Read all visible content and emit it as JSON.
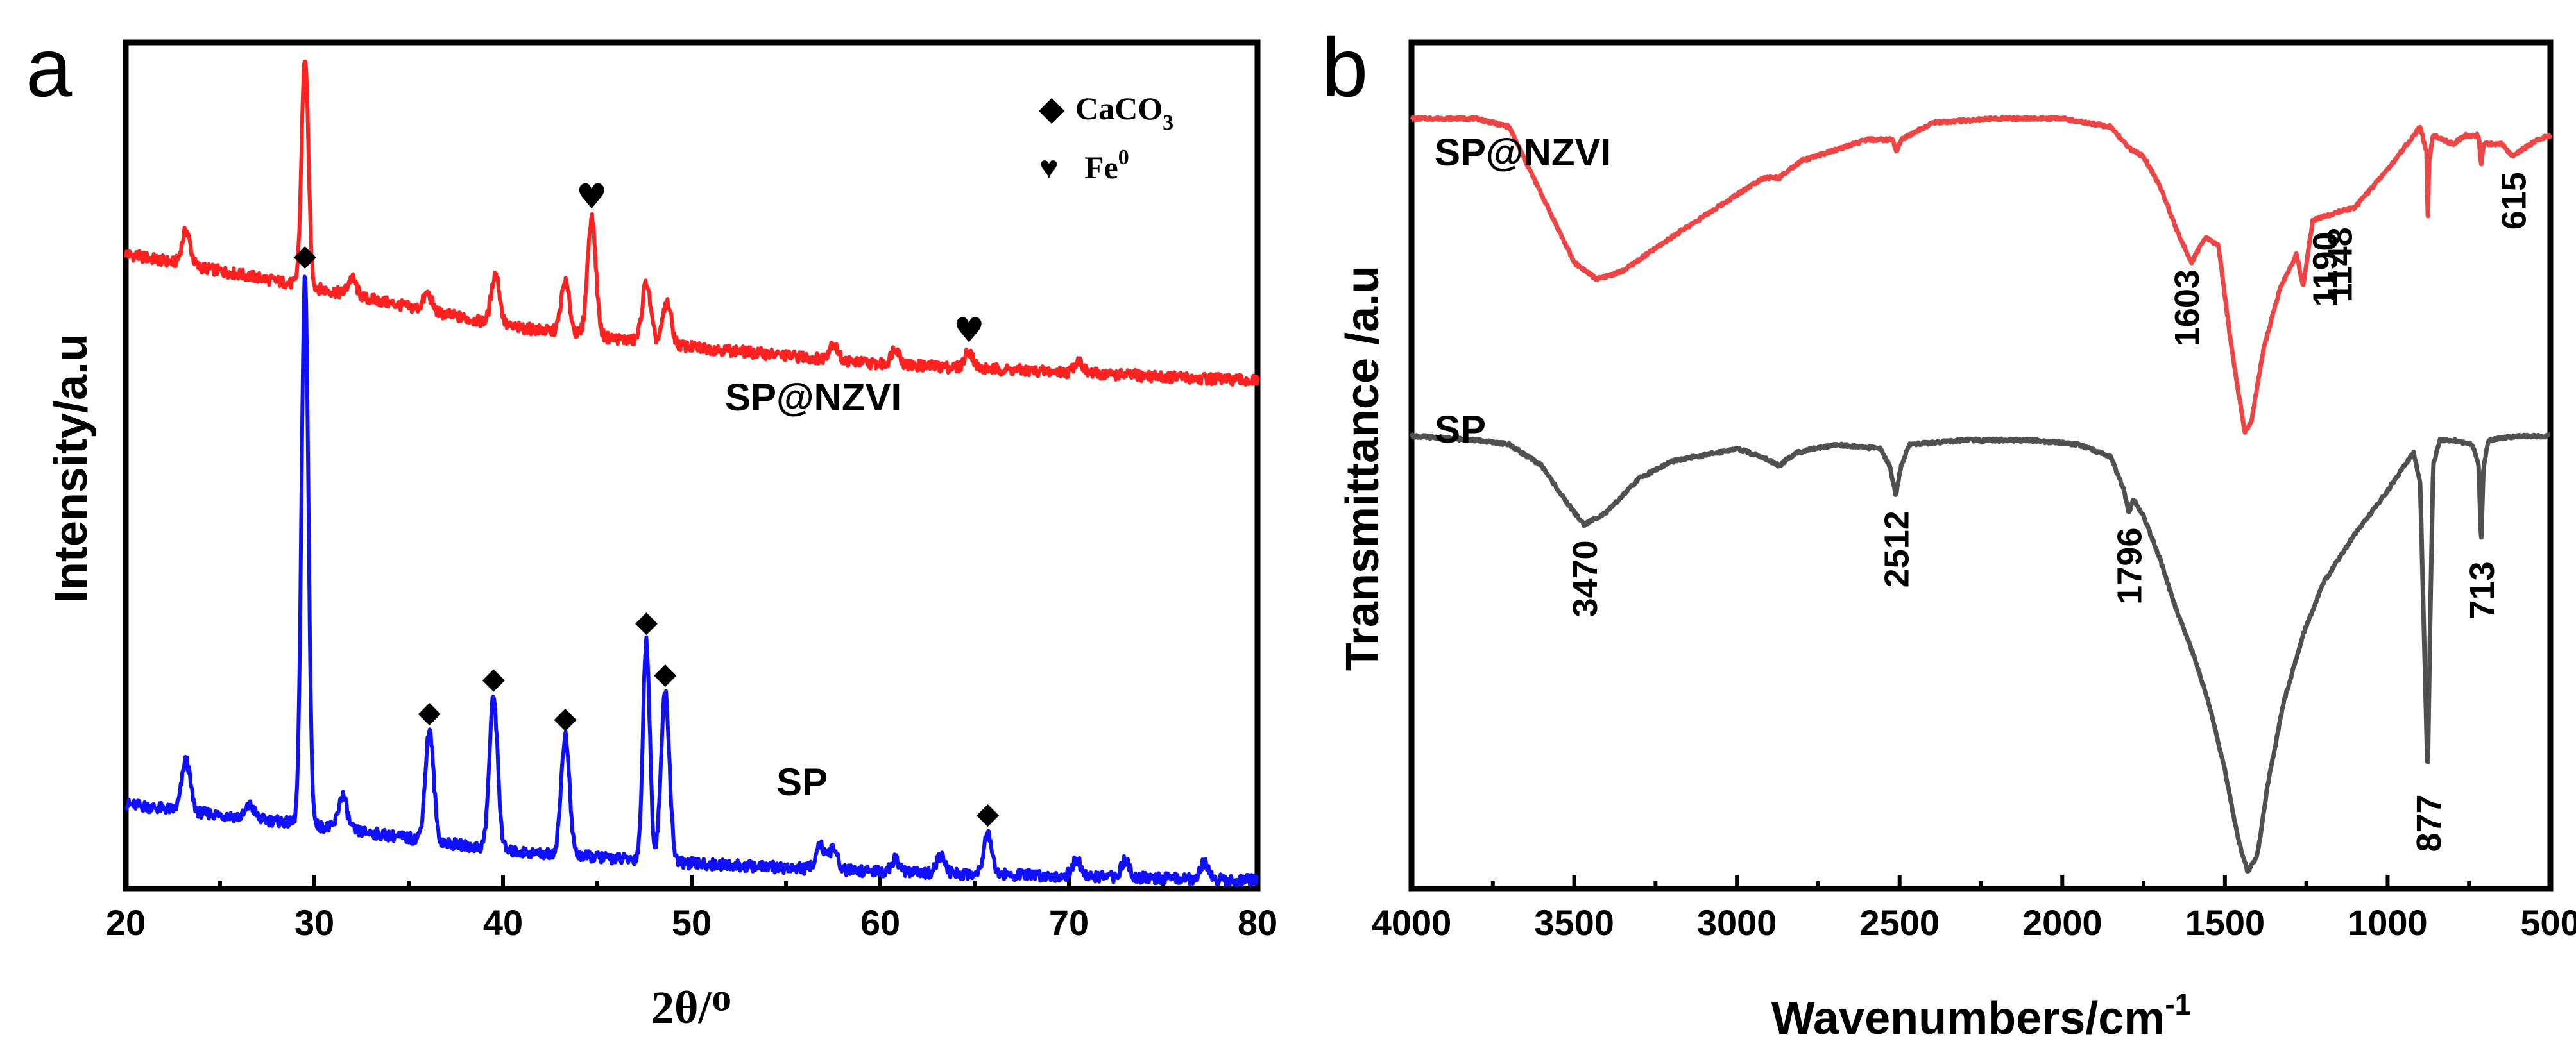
{
  "chart_data": [
    {
      "panel": "a",
      "type": "line",
      "title": "",
      "xlabel": "2θ/ᴼ",
      "ylabel": "Intensity/a.u",
      "xlim": [
        20,
        80
      ],
      "xticks": [
        20,
        30,
        40,
        50,
        60,
        70,
        80
      ],
      "ylim": [
        0,
        100
      ],
      "legend": {
        "position": "top-right",
        "entries": [
          {
            "marker": "◆",
            "label": "CaCO",
            "sub": "3"
          },
          {
            "marker": "♥",
            "label": "Fe",
            "sup": "0"
          }
        ]
      },
      "series": [
        {
          "name": "SP@NZVI",
          "color": "#ff2020",
          "baseline": [
            [
              20,
              75
            ],
            [
              30,
              71
            ],
            [
              40,
              66.5
            ],
            [
              50,
              64
            ],
            [
              60,
              62
            ],
            [
              70,
              61
            ],
            [
              80,
              60
            ]
          ],
          "peaks": [
            {
              "x": 23.2,
              "h": 4
            },
            {
              "x": 29.5,
              "h": 27
            },
            {
              "x": 32.0,
              "h": 2
            },
            {
              "x": 36.0,
              "h": 2
            },
            {
              "x": 39.6,
              "h": 6
            },
            {
              "x": 43.3,
              "h": 6
            },
            {
              "x": 44.7,
              "h": 14
            },
            {
              "x": 47.6,
              "h": 7
            },
            {
              "x": 48.7,
              "h": 5
            },
            {
              "x": 57.5,
              "h": 2
            },
            {
              "x": 60.8,
              "h": 2
            },
            {
              "x": 64.7,
              "h": 2
            },
            {
              "x": 70.5,
              "h": 1.5
            }
          ],
          "label": "SP@NZVI",
          "markers": [
            {
              "symbol": "♥",
              "x": 44.7
            },
            {
              "symbol": "♥",
              "x": 64.7
            }
          ]
        },
        {
          "name": "SP",
          "color": "#1010ff",
          "baseline": [
            [
              20,
              10
            ],
            [
              30,
              7.5
            ],
            [
              40,
              4.5
            ],
            [
              50,
              3
            ],
            [
              60,
              2
            ],
            [
              70,
              1.5
            ],
            [
              80,
              1
            ]
          ],
          "peaks": [
            {
              "x": 23.2,
              "h": 6
            },
            {
              "x": 26.6,
              "h": 1.5
            },
            {
              "x": 29.5,
              "h": 65
            },
            {
              "x": 31.5,
              "h": 4
            },
            {
              "x": 36.1,
              "h": 13
            },
            {
              "x": 39.5,
              "h": 18
            },
            {
              "x": 43.3,
              "h": 14
            },
            {
              "x": 47.6,
              "h": 26
            },
            {
              "x": 48.6,
              "h": 20
            },
            {
              "x": 56.8,
              "h": 3
            },
            {
              "x": 57.5,
              "h": 2.5
            },
            {
              "x": 60.8,
              "h": 1.5
            },
            {
              "x": 63.2,
              "h": 2
            },
            {
              "x": 65.7,
              "h": 5
            },
            {
              "x": 70.4,
              "h": 2
            },
            {
              "x": 73.0,
              "h": 2
            },
            {
              "x": 77.2,
              "h": 2
            }
          ],
          "label": "SP",
          "markers": [
            {
              "symbol": "◆",
              "x": 29.5
            },
            {
              "symbol": "◆",
              "x": 36.1
            },
            {
              "symbol": "◆",
              "x": 39.5
            },
            {
              "symbol": "◆",
              "x": 43.3
            },
            {
              "symbol": "◆",
              "x": 47.6
            },
            {
              "symbol": "◆",
              "x": 48.6
            },
            {
              "symbol": "◆",
              "x": 65.7
            }
          ]
        }
      ]
    },
    {
      "panel": "b",
      "type": "line",
      "title": "",
      "xlabel": "Wavenumbers/cm",
      "xlabel_sup": "-1",
      "ylabel": "Transmittance /a.u",
      "xlim": [
        4000,
        500
      ],
      "xticks": [
        4000,
        3500,
        3000,
        2500,
        2000,
        1500,
        1000,
        500
      ],
      "ylim": [
        0,
        100
      ],
      "series": [
        {
          "name": "SP@NZVI",
          "color": "#ee4444",
          "points": [
            [
              4000,
              91
            ],
            [
              3800,
              91
            ],
            [
              3700,
              90
            ],
            [
              3600,
              82
            ],
            [
              3500,
              74
            ],
            [
              3430,
              72
            ],
            [
              3350,
              73
            ],
            [
              3200,
              77
            ],
            [
              3000,
              82
            ],
            [
              2920,
              84
            ],
            [
              2870,
              84
            ],
            [
              2800,
              86
            ],
            [
              2600,
              88.5
            ],
            [
              2520,
              88.5
            ],
            [
              2510,
              87
            ],
            [
              2495,
              88.5
            ],
            [
              2400,
              90.5
            ],
            [
              2200,
              91
            ],
            [
              2000,
              91
            ],
            [
              1850,
              90
            ],
            [
              1796,
              87.5
            ],
            [
              1750,
              86.5
            ],
            [
              1700,
              83
            ],
            [
              1650,
              78
            ],
            [
              1603,
              74
            ],
            [
              1560,
              77
            ],
            [
              1520,
              76
            ],
            [
              1480,
              64
            ],
            [
              1440,
              54
            ],
            [
              1420,
              55
            ],
            [
              1380,
              64
            ],
            [
              1330,
              71
            ],
            [
              1280,
              75
            ],
            [
              1260,
              71
            ],
            [
              1230,
              79
            ],
            [
              1190,
              79.5
            ],
            [
              1148,
              80
            ],
            [
              1100,
              80.5
            ],
            [
              1000,
              85
            ],
            [
              940,
              88
            ],
            [
              900,
              90
            ],
            [
              880,
              87
            ],
            [
              877,
              78
            ],
            [
              873,
              86
            ],
            [
              860,
              89
            ],
            [
              800,
              88
            ],
            [
              760,
              89
            ],
            [
              720,
              89
            ],
            [
              713,
              85.5
            ],
            [
              705,
              88
            ],
            [
              650,
              88
            ],
            [
              615,
              86.5
            ],
            [
              580,
              87.5
            ],
            [
              540,
              88.5
            ],
            [
              500,
              89
            ]
          ],
          "label": "SP@NZVI",
          "peak_labels": [
            {
              "text": "1603",
              "x": 1620
            },
            {
              "text": "1190",
              "x": 1195
            },
            {
              "text": "1148",
              "x": 1150
            },
            {
              "text": "615",
              "x": 615
            }
          ]
        },
        {
          "name": "SP",
          "color": "#505050",
          "points": [
            [
              4000,
              53.5
            ],
            [
              3800,
              53
            ],
            [
              3700,
              52.5
            ],
            [
              3600,
              50
            ],
            [
              3530,
              46
            ],
            [
              3470,
              43
            ],
            [
              3400,
              44.5
            ],
            [
              3300,
              48.5
            ],
            [
              3200,
              50.5
            ],
            [
              3000,
              52
            ],
            [
              2920,
              51
            ],
            [
              2870,
              50
            ],
            [
              2820,
              51.5
            ],
            [
              2700,
              52.5
            ],
            [
              2560,
              52
            ],
            [
              2530,
              50
            ],
            [
              2512,
              46.5
            ],
            [
              2495,
              50
            ],
            [
              2470,
              52.5
            ],
            [
              2300,
              53
            ],
            [
              2100,
              53
            ],
            [
              1950,
              52.5
            ],
            [
              1850,
              51
            ],
            [
              1810,
              47
            ],
            [
              1796,
              44.5
            ],
            [
              1780,
              46
            ],
            [
              1750,
              44
            ],
            [
              1700,
              39
            ],
            [
              1650,
              33
            ],
            [
              1600,
              28
            ],
            [
              1550,
              22
            ],
            [
              1500,
              14
            ],
            [
              1460,
              6
            ],
            [
              1430,
              2
            ],
            [
              1400,
              4
            ],
            [
              1370,
              12
            ],
            [
              1320,
              22
            ],
            [
              1260,
              30
            ],
            [
              1200,
              36
            ],
            [
              1100,
              42
            ],
            [
              1000,
              47
            ],
            [
              950,
              50
            ],
            [
              920,
              51.5
            ],
            [
              900,
              48
            ],
            [
              877,
              13
            ],
            [
              870,
              30
            ],
            [
              860,
              50
            ],
            [
              840,
              53
            ],
            [
              800,
              53
            ],
            [
              740,
              52.5
            ],
            [
              720,
              50
            ],
            [
              713,
              40.5
            ],
            [
              705,
              50
            ],
            [
              690,
              53
            ],
            [
              600,
              53.5
            ],
            [
              500,
              53.5
            ]
          ],
          "label": "SP",
          "peak_labels": [
            {
              "text": "3470",
              "x": 3470
            },
            {
              "text": "2512",
              "x": 2512
            },
            {
              "text": "1796",
              "x": 1796
            },
            {
              "text": "877",
              "x": 877
            },
            {
              "text": "713",
              "x": 713
            }
          ]
        }
      ]
    }
  ]
}
